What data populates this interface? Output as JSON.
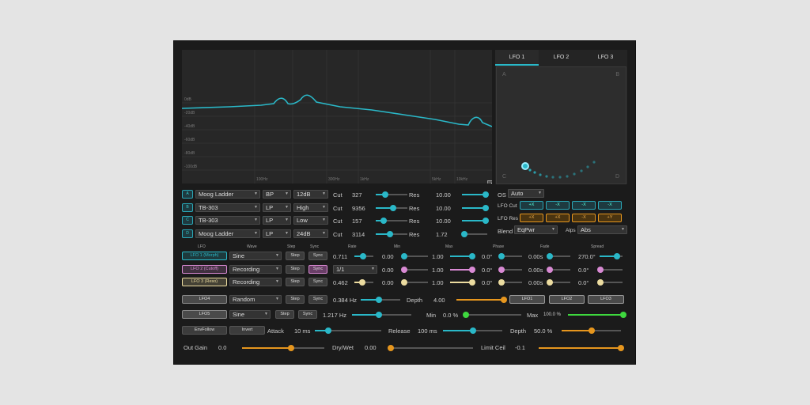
{
  "graph": {
    "y_ticks": [
      "0dB",
      "-20dB",
      "-40dB",
      "-60dB",
      "-80dB",
      "-100dB"
    ],
    "x_ticks": [
      "100Hz",
      "300Hz",
      "1kHz",
      "5kHz",
      "10kHz"
    ],
    "e_button": "E"
  },
  "lfo_tabs": [
    "LFO 1",
    "LFO 2",
    "LFO 3"
  ],
  "xy": {
    "a": "A",
    "b": "B",
    "c": "C",
    "d": "D"
  },
  "filters": [
    {
      "id": "A",
      "model": "Moog Ladder",
      "type": "BP",
      "slope": "12dB",
      "cut_label": "Cut",
      "cut": "327",
      "res_label": "Res",
      "res": "10.00",
      "cut_pos": 0.3,
      "res_pos": 0.95
    },
    {
      "id": "B",
      "model": "TB-303",
      "type": "LP",
      "slope": "High",
      "cut_label": "Cut",
      "cut": "9356",
      "res_label": "Res",
      "res": "10.00",
      "cut_pos": 0.55,
      "res_pos": 0.95
    },
    {
      "id": "C",
      "model": "TB-303",
      "type": "LP",
      "slope": "Low",
      "cut_label": "Cut",
      "cut": "157",
      "res_label": "Res",
      "res": "10.00",
      "cut_pos": 0.25,
      "res_pos": 0.95
    },
    {
      "id": "D",
      "model": "Moog Ladder",
      "type": "LP",
      "slope": "24dB",
      "cut_label": "Cut",
      "cut": "3114",
      "res_label": "Res",
      "res": "1.72",
      "cut_pos": 0.45,
      "res_pos": 0.1
    }
  ],
  "os": {
    "label": "OS",
    "value": "Auto"
  },
  "lfo_cut": {
    "label": "LFO Cut",
    "buttons": [
      "+X",
      "-X",
      "-X",
      "-X"
    ]
  },
  "lfo_res": {
    "label": "LFO Res",
    "buttons": [
      "+X",
      "+X",
      "-X",
      "+Y"
    ]
  },
  "blend": {
    "label": "Blend",
    "value": "EqPwr",
    "alps_label": "Alps",
    "alps_value": "Abs"
  },
  "lfo_headers": [
    "LFO",
    "Wave",
    "Step",
    "Sync",
    "Rate",
    "Min",
    "Max",
    "Phase",
    "Fade",
    "Spread"
  ],
  "lfos": [
    {
      "name": "LFO 1 (Morph)",
      "wave": "Sine",
      "step": "Step",
      "sync": "Sync",
      "rate": "0.711",
      "min": "0.00",
      "max": "1.00",
      "phase": "0.0°",
      "fade": "0.00s",
      "spread": "270.0°",
      "color": "#2ab8c8",
      "rate_pos": 0.45,
      "min_pos": 0.05,
      "max_pos": 0.9,
      "phase_pos": 0.05,
      "fade_pos": 0.05,
      "spread_pos": 0.75
    },
    {
      "name": "LFO 2 (Cutoff)",
      "wave": "Recording",
      "step": "Step",
      "sync": "Sync",
      "rate": "1/1",
      "min": "0.00",
      "max": "1.00",
      "phase": "0.0°",
      "fade": "0.00s",
      "spread": "0.0°",
      "color": "#d98ad4",
      "rate_pos": 0.0,
      "min_pos": 0.05,
      "max_pos": 0.9,
      "phase_pos": 0.05,
      "fade_pos": 0.05,
      "spread_pos": 0.05
    },
    {
      "name": "LFO 3 (Reso)",
      "wave": "Recording",
      "step": "Step",
      "sync": "Sync",
      "rate": "0.462",
      "min": "0.00",
      "max": "1.00",
      "phase": "0.0°",
      "fade": "0.00s",
      "spread": "0.0°",
      "color": "#ecdca0",
      "rate_pos": 0.4,
      "min_pos": 0.05,
      "max_pos": 0.9,
      "phase_pos": 0.05,
      "fade_pos": 0.05,
      "spread_pos": 0.05
    }
  ],
  "lfo4": {
    "name": "LFO4",
    "wave": "Random",
    "step": "Step",
    "sync": "Sync",
    "rate": "0.384 Hz",
    "rate_pos": 0.45,
    "depth_label": "Depth",
    "depth": "4.00",
    "depth_pos": 1.0,
    "targets": [
      "LFO1",
      "LFO2",
      "LFO3"
    ]
  },
  "lfo5": {
    "name": "LFO5",
    "wave": "Sine",
    "step": "Step",
    "sync": "Sync",
    "rate": "1.217 Hz",
    "rate_pos": 0.45,
    "min_label": "Min",
    "min": "0.0 %",
    "min_pos": 0.0,
    "max_label": "Max",
    "max": "100.0 %",
    "max_pos": 1.0
  },
  "env": {
    "envfollow": "EnvFollow",
    "invert": "Invert",
    "attack_label": "Attack",
    "attack": "10 ms",
    "attack_pos": 0.2,
    "release_label": "Release",
    "release": "100 ms",
    "release_pos": 0.5,
    "depth_label": "Depth",
    "depth": "50.0 %",
    "depth_pos": 0.5
  },
  "out": {
    "gain_label": "Out Gain",
    "gain": "0.0",
    "gain_pos": 0.6,
    "drywet_label": "Dry/Wet",
    "drywet": "0.00",
    "drywet_pos": 0.0,
    "limit_label": "Limit Ceil",
    "limit": "-0.1",
    "limit_pos": 1.0
  },
  "colors": {
    "accent": "#2ab8c8",
    "orange": "#e6961e",
    "green": "#3ed83e",
    "pink": "#d98ad4",
    "cream": "#ecdca0"
  }
}
